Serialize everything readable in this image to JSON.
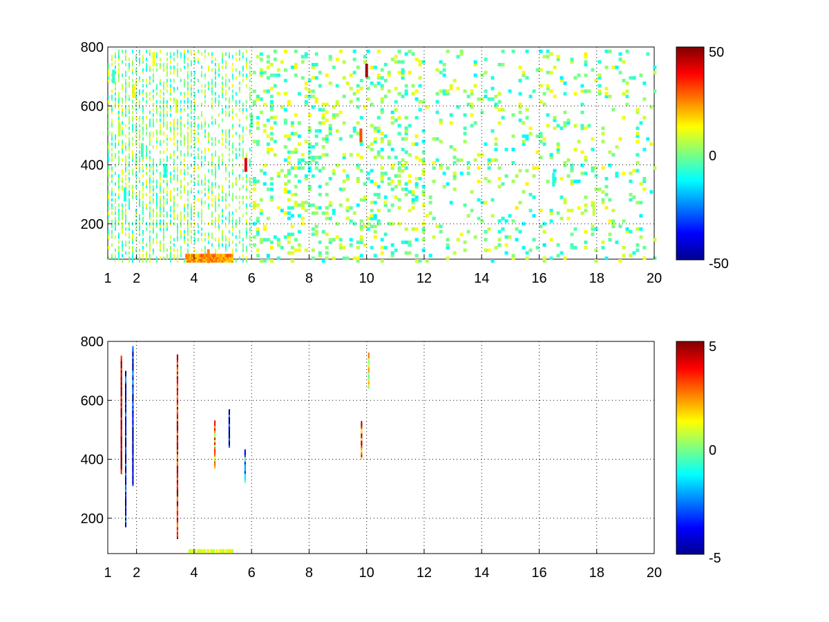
{
  "chart_data": [
    {
      "type": "heatmap",
      "title": "",
      "xlabel": "",
      "ylabel": "",
      "xlim": [
        1,
        20
      ],
      "ylim": [
        80,
        800
      ],
      "x_ticks": [
        "1",
        "2",
        "4",
        "6",
        "8",
        "10",
        "12",
        "14",
        "16",
        "18",
        "20"
      ],
      "y_ticks": [
        "200",
        "400",
        "600",
        "800"
      ],
      "grid": true,
      "colormap": "jet",
      "colorbar": {
        "range": [
          -50,
          50
        ],
        "ticks": [
          "50",
          "0",
          "-50"
        ]
      },
      "notes": "Sparse scattered cells; dense at low x (1-6), mostly green/cyan/yellow values near 0; notable yellow-orange band at y~80-100 for x~3.8-5; red streak at x~10, y~700-800.",
      "cells": [
        {
          "x": 1.2,
          "y": 700,
          "v": -8
        },
        {
          "x": 1.4,
          "y": 520,
          "v": 6
        },
        {
          "x": 1.6,
          "y": 300,
          "v": -10
        },
        {
          "x": 1.9,
          "y": 650,
          "v": 14
        },
        {
          "x": 2.2,
          "y": 450,
          "v": -6
        },
        {
          "x": 2.6,
          "y": 760,
          "v": 12
        },
        {
          "x": 3.0,
          "y": 380,
          "v": -12
        },
        {
          "x": 3.4,
          "y": 600,
          "v": 8
        },
        {
          "x": 4.5,
          "y": 90,
          "v": 25
        },
        {
          "x": 5.8,
          "y": 400,
          "v": 40
        },
        {
          "x": 6.0,
          "y": 550,
          "v": -4
        },
        {
          "x": 9.8,
          "y": 500,
          "v": 30
        },
        {
          "x": 10.0,
          "y": 720,
          "v": 45
        },
        {
          "x": 16.5,
          "y": 350,
          "v": -10
        },
        {
          "x": 17.9,
          "y": 250,
          "v": 6
        }
      ]
    },
    {
      "type": "heatmap",
      "title": "",
      "xlabel": "",
      "ylabel": "",
      "xlim": [
        1,
        20
      ],
      "ylim": [
        80,
        800
      ],
      "x_ticks": [
        "1",
        "2",
        "4",
        "6",
        "8",
        "10",
        "12",
        "14",
        "16",
        "18",
        "20"
      ],
      "y_ticks": [
        "200",
        "400",
        "600",
        "800"
      ],
      "grid": true,
      "colormap": "jet",
      "colorbar": {
        "range": [
          -5,
          5
        ],
        "ticks": [
          "5",
          "0",
          "-5"
        ]
      },
      "notes": "Very sparse vertical streaks at x~1.5, 1.7, 1.9, 3.4, 4.7, 5.2, 5.8, 9.8, 10.0 and a faint green band near y~90 for x~3.8-5.3.",
      "cells": [
        {
          "x": 1.45,
          "y": 360,
          "y2": 745,
          "v": 5
        },
        {
          "x": 1.6,
          "y": 180,
          "y2": 700,
          "v": -4
        },
        {
          "x": 1.85,
          "y": 320,
          "y2": 780,
          "v": -4
        },
        {
          "x": 3.4,
          "y": 140,
          "y2": 750,
          "v": 4
        },
        {
          "x": 4.7,
          "y": 380,
          "y2": 530,
          "v": 2
        },
        {
          "x": 5.2,
          "y": 450,
          "y2": 570,
          "v": -4
        },
        {
          "x": 5.75,
          "y": 330,
          "y2": 430,
          "v": -2
        },
        {
          "x": 9.8,
          "y": 410,
          "y2": 530,
          "v": 3
        },
        {
          "x": 10.05,
          "y": 650,
          "y2": 760,
          "v": 1
        }
      ]
    }
  ]
}
